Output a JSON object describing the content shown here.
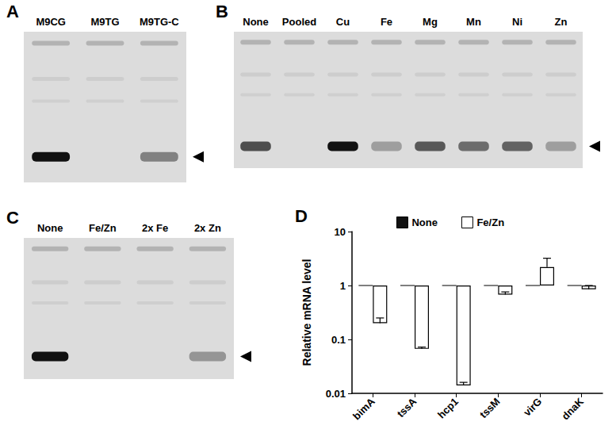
{
  "gels": [
    {
      "panel": "A",
      "lanes": [
        {
          "label": "M9CG",
          "band": 1
        },
        {
          "label": "M9TG",
          "band": 0
        },
        {
          "label": "M9TG-C",
          "band": 0.45
        }
      ]
    },
    {
      "panel": "B",
      "lanes": [
        {
          "label": "None",
          "band": 0.7
        },
        {
          "label": "Pooled",
          "band": 0
        },
        {
          "label": "Cu",
          "band": 1
        },
        {
          "label": "Fe",
          "band": 0.3
        },
        {
          "label": "Mg",
          "band": 0.65
        },
        {
          "label": "Mn",
          "band": 0.55
        },
        {
          "label": "Ni",
          "band": 0.6
        },
        {
          "label": "Zn",
          "band": 0.3
        }
      ]
    },
    {
      "panel": "C",
      "lanes": [
        {
          "label": "None",
          "band": 1
        },
        {
          "label": "Fe/Zn",
          "band": 0
        },
        {
          "label": "2x Fe",
          "band": 0
        },
        {
          "label": "2x Zn",
          "band": 0.35
        }
      ]
    }
  ],
  "chart_data": {
    "panel": "D",
    "type": "bar",
    "log": "y",
    "ylabel": "Relative mRNA level",
    "categories": [
      "bimA",
      "tssA",
      "hcp1",
      "tssM",
      "virG",
      "dnaK"
    ],
    "series": [
      {
        "name": "None",
        "color": "#111111",
        "values": [
          1,
          1,
          1,
          1,
          1,
          1
        ]
      },
      {
        "name": "Fe/Zn",
        "color": "#ffffff",
        "values": [
          0.2,
          0.067,
          0.014,
          0.68,
          2.2,
          0.85
        ],
        "errors": [
          0.05,
          0.005,
          0.002,
          0.08,
          1.0,
          0.15
        ]
      }
    ],
    "ylim": [
      0.01,
      10
    ],
    "yticks": [
      0.01,
      0.1,
      1,
      10
    ],
    "legend": "top",
    "grid": false
  }
}
